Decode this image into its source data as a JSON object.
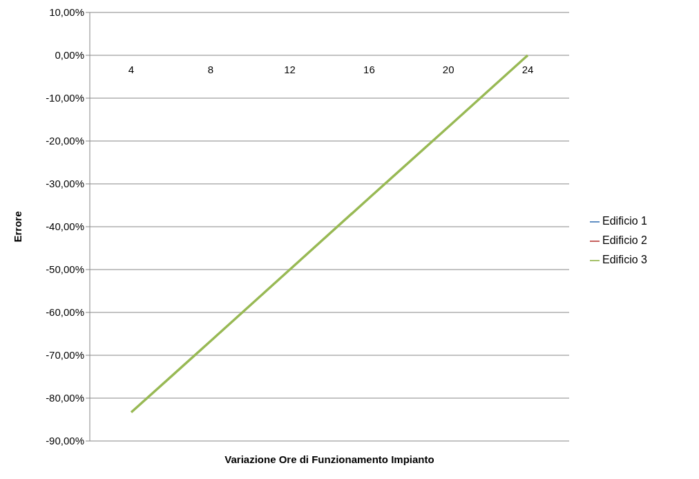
{
  "chart_data": {
    "type": "line",
    "xlabel": "Variazione Ore di Funzionamento Impianto",
    "ylabel": "Errore",
    "categories": [
      "4",
      "8",
      "12",
      "16",
      "20",
      "24"
    ],
    "series": [
      {
        "name": "Edificio 1",
        "color": "#4a7ebb",
        "values": [
          null,
          null,
          null,
          null,
          null,
          null
        ]
      },
      {
        "name": "Edificio 2",
        "color": "#be4b48",
        "values": [
          null,
          null,
          null,
          null,
          null,
          null
        ]
      },
      {
        "name": "Edificio 3",
        "color": "#98b954",
        "values": [
          -83.3,
          -66.7,
          -50,
          -33.3,
          -16.7,
          0
        ]
      }
    ],
    "ylim": [
      -90,
      10
    ],
    "yticks": [
      {
        "value": -90,
        "label": "-90,00%"
      },
      {
        "value": -80,
        "label": "-80,00%"
      },
      {
        "value": -70,
        "label": "-70,00%"
      },
      {
        "value": -60,
        "label": "-60,00%"
      },
      {
        "value": -50,
        "label": "-50,00%"
      },
      {
        "value": -40,
        "label": "-40,00%"
      },
      {
        "value": -30,
        "label": "-30,00%"
      },
      {
        "value": -20,
        "label": "-20,00%"
      },
      {
        "value": -10,
        "label": "-10,00%"
      },
      {
        "value": 0,
        "label": "0,00%"
      },
      {
        "value": 10,
        "label": "10,00%"
      }
    ],
    "grid": "y",
    "legend": "right",
    "marker": "none",
    "line_style": "solid"
  }
}
